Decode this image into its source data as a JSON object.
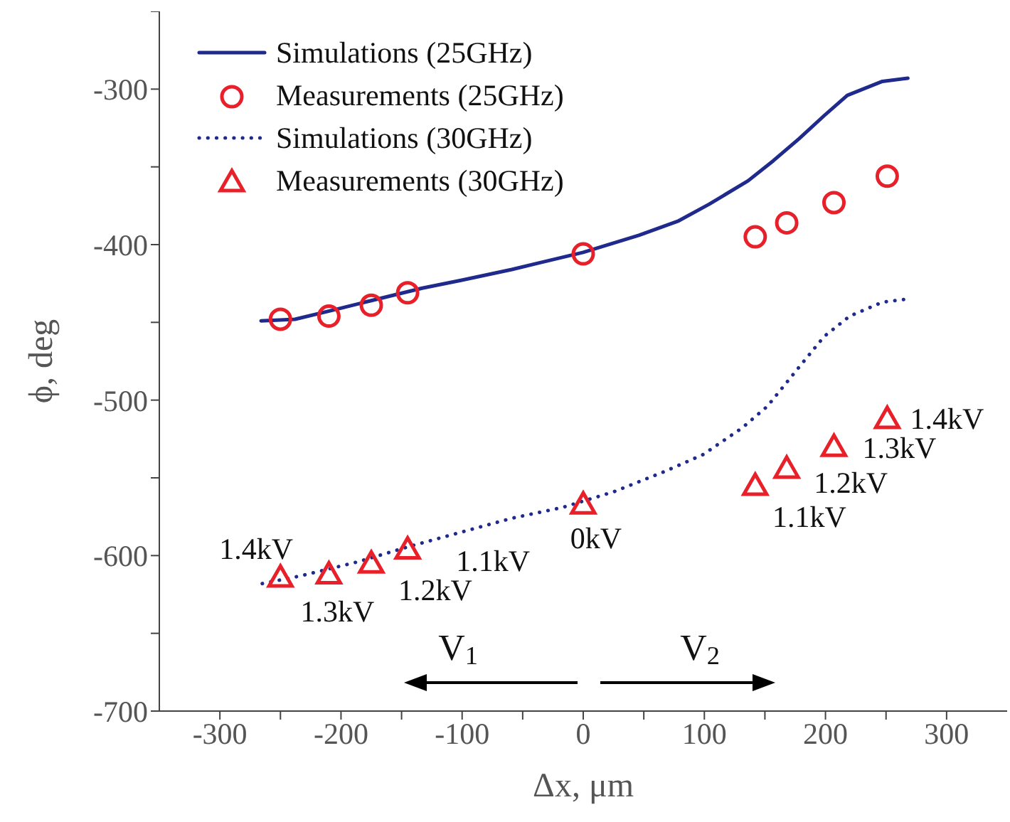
{
  "chart_data": {
    "type": "line",
    "xlabel": "Δx, μm",
    "ylabel": "ϕ, deg",
    "xlim": [
      -350,
      350
    ],
    "ylim": [
      -700,
      -250
    ],
    "xticks": [
      -300,
      {
        "value": -250,
        "label": null
      },
      -200,
      {
        "value": -150,
        "label": null
      },
      -100,
      {
        "value": -50,
        "label": null
      },
      0,
      {
        "value": 50,
        "label": null
      },
      100,
      {
        "value": 150,
        "label": null
      },
      200,
      {
        "value": 250,
        "label": null
      },
      300
    ],
    "yticks": [
      -700,
      {
        "value": -650,
        "label": null
      },
      -600,
      {
        "value": -550,
        "label": null
      },
      -500,
      {
        "value": -450,
        "label": null
      },
      -400,
      {
        "value": -350,
        "label": null
      },
      -300,
      {
        "value": -250,
        "label": null
      }
    ],
    "grid": false,
    "legend": "top left",
    "series": [
      {
        "name": "Simulations (25GHz)",
        "color": "#1f2a8c",
        "line_style": "solid",
        "marker": "none",
        "x": [
          -266,
          -238,
          -206,
          -175,
          -133,
          -101,
          -59,
          -27,
          0,
          46,
          78,
          104,
          136,
          157,
          178,
          199,
          218,
          247,
          268
        ],
        "values": [
          -449,
          -448,
          -442,
          -436,
          -428,
          -423,
          -416,
          -410,
          -405,
          -394,
          -385,
          -374,
          -359,
          -346,
          -332,
          -317,
          -304,
          -295,
          -293
        ]
      },
      {
        "name": "Measurements (25GHz)",
        "type": "scatter",
        "color": "#e8202a",
        "marker": "circle",
        "x": [
          -250,
          -210,
          -175,
          -145,
          0,
          142,
          168,
          207,
          251
        ],
        "values": [
          -448,
          -446,
          -439,
          -431,
          -406,
          -395,
          -386,
          -373,
          -356
        ]
      },
      {
        "name": "Simulations (30GHz)",
        "color": "#1f2a8c",
        "line_style": "dotted",
        "marker": "none",
        "x": [
          -265,
          -233,
          -186,
          -143,
          -101,
          -59,
          -17,
          25,
          67,
          99,
          131,
          152,
          178,
          199,
          220,
          247,
          268
        ],
        "values": [
          -618,
          -613,
          -604,
          -594,
          -585,
          -576,
          -569,
          -559,
          -546,
          -535,
          -518,
          -504,
          -479,
          -459,
          -446,
          -437,
          -435
        ]
      },
      {
        "name": "Measurements (30GHz)",
        "type": "scatter",
        "color": "#e8202a",
        "marker": "triangle",
        "x": [
          -250,
          -210,
          -175,
          -145,
          0,
          142,
          168,
          207,
          251
        ],
        "values": [
          -614,
          -612,
          -605,
          -596,
          -567,
          -555,
          -544,
          -530,
          -512
        ]
      }
    ],
    "annotations": [
      {
        "text": "1.4kV",
        "x": -250,
        "y": -614
      },
      {
        "text": "1.3kV",
        "x": -210,
        "y": -612
      },
      {
        "text": "1.2kV",
        "x": -175,
        "y": -605
      },
      {
        "text": "1.1kV",
        "x": -145,
        "y": -596
      },
      {
        "text": "0kV",
        "x": 0,
        "y": -567
      },
      {
        "text": "1.1kV",
        "x": 142,
        "y": -555
      },
      {
        "text": "1.2kV",
        "x": 168,
        "y": -544
      },
      {
        "text": "1.3kV",
        "x": 207,
        "y": -530
      },
      {
        "text": "1.4kV",
        "x": 251,
        "y": -512
      },
      "V$_{1}$",
      "V$_{2}$"
    ]
  }
}
